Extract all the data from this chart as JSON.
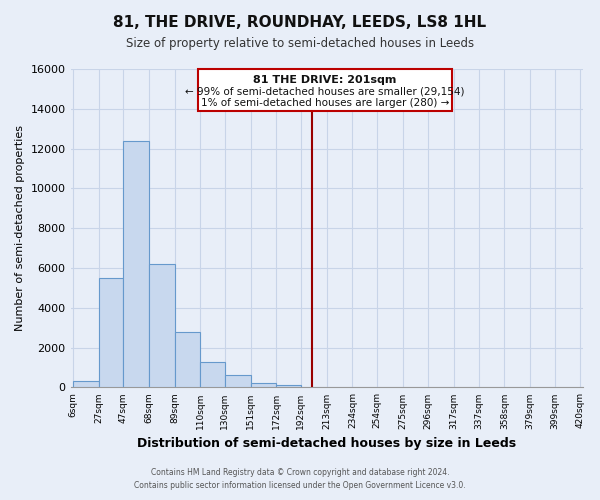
{
  "title": "81, THE DRIVE, ROUNDHAY, LEEDS, LS8 1HL",
  "subtitle": "Size of property relative to semi-detached houses in Leeds",
  "xlabel": "Distribution of semi-detached houses by size in Leeds",
  "ylabel": "Number of semi-detached properties",
  "bin_labels": [
    "6sqm",
    "27sqm",
    "47sqm",
    "68sqm",
    "89sqm",
    "110sqm",
    "130sqm",
    "151sqm",
    "172sqm",
    "192sqm",
    "213sqm",
    "234sqm",
    "254sqm",
    "275sqm",
    "296sqm",
    "317sqm",
    "337sqm",
    "358sqm",
    "379sqm",
    "399sqm",
    "420sqm"
  ],
  "bar_values": [
    300,
    5500,
    12400,
    6200,
    2800,
    1300,
    600,
    220,
    130,
    0,
    0,
    0,
    0,
    0,
    0,
    0,
    0,
    0,
    0,
    0
  ],
  "bar_color": "#c8d8ee",
  "bar_edge_color": "#6699cc",
  "property_line_x": 201,
  "xmin": 6,
  "xmax": 420,
  "bin_edges": [
    6,
    27,
    47,
    68,
    89,
    110,
    130,
    151,
    172,
    192,
    213,
    234,
    254,
    275,
    296,
    317,
    337,
    358,
    379,
    399,
    420
  ],
  "ylim": [
    0,
    16000
  ],
  "yticks": [
    0,
    2000,
    4000,
    6000,
    8000,
    10000,
    12000,
    14000,
    16000
  ],
  "annotation_title": "81 THE DRIVE: 201sqm",
  "annotation_line1": "← 99% of semi-detached houses are smaller (29,154)",
  "annotation_line2": "1% of semi-detached houses are larger (280) →",
  "footer_line1": "Contains HM Land Registry data © Crown copyright and database right 2024.",
  "footer_line2": "Contains public sector information licensed under the Open Government Licence v3.0.",
  "bg_color": "#e8eef8",
  "grid_color": "#c8d4e8",
  "plot_bg_color": "#e8eef8",
  "annotation_box_color": "#ffffff",
  "annotation_box_edge": "#bb0000",
  "property_line_color": "#990000"
}
